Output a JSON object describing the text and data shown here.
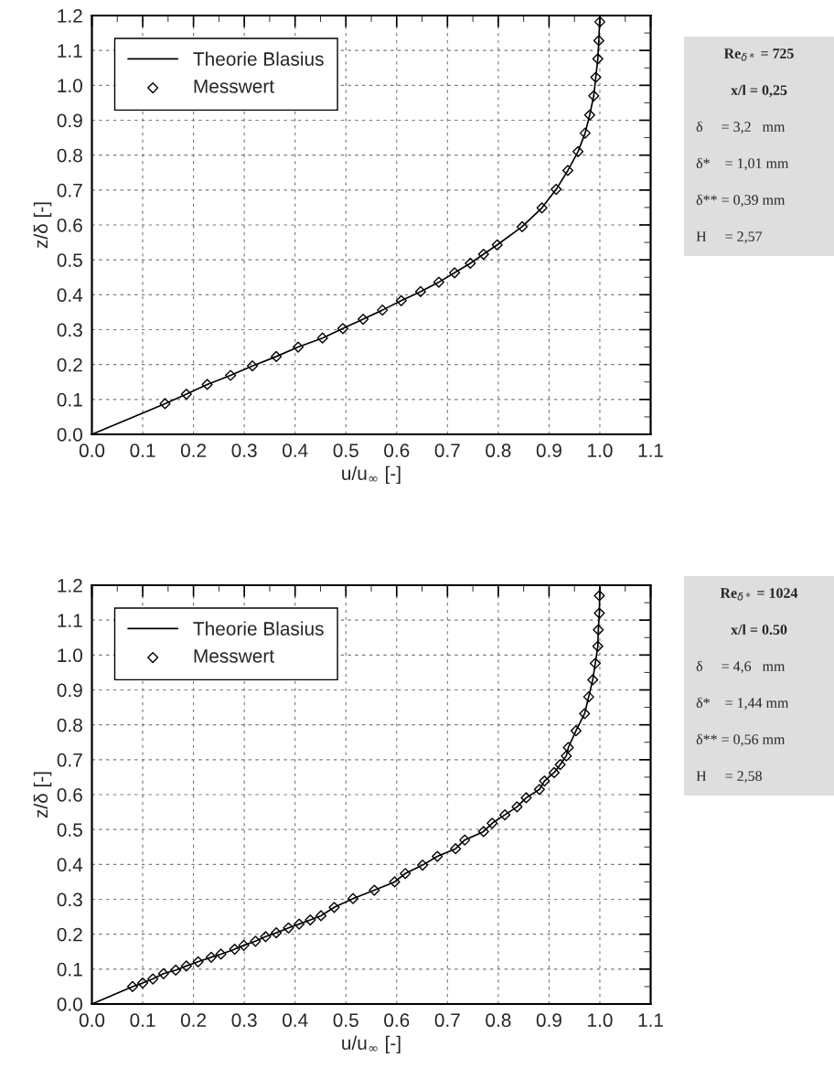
{
  "chart_data": [
    {
      "type": "line",
      "xlabel": "u/u$_{∞}$ [-]",
      "ylabel": "z/δ [-]",
      "xlim": [
        0,
        1.1
      ],
      "ylim": [
        0,
        1.2
      ],
      "xticks": [
        {
          "value": 0,
          "label": "0.0"
        },
        {
          "value": 0.1,
          "label": "0.1"
        },
        {
          "value": 0.2,
          "label": "0.2"
        },
        {
          "value": 0.3,
          "label": "0.3"
        },
        {
          "value": 0.4,
          "label": "0.4"
        },
        {
          "value": 0.5,
          "label": "0.5"
        },
        {
          "value": 0.6,
          "label": "0.6"
        },
        {
          "value": 0.7,
          "label": "0.7"
        },
        {
          "value": 0.8,
          "label": "0.8"
        },
        {
          "value": 0.9,
          "label": "0.9"
        },
        {
          "value": 1.0,
          "label": "1.0"
        },
        {
          "value": 1.1,
          "label": "1.1"
        }
      ],
      "yticks": [
        {
          "value": 0,
          "label": "0.0"
        },
        {
          "value": 0.1,
          "label": "0.1"
        },
        {
          "value": 0.2,
          "label": "0.2"
        },
        {
          "value": 0.3,
          "label": "0.3"
        },
        {
          "value": 0.4,
          "label": "0.4"
        },
        {
          "value": 0.5,
          "label": "0.5"
        },
        {
          "value": 0.6,
          "label": "0.6"
        },
        {
          "value": 0.7,
          "label": "0.7"
        },
        {
          "value": 0.8,
          "label": "0.8"
        },
        {
          "value": 0.9,
          "label": "0.9"
        },
        {
          "value": 1.0,
          "label": "1.0"
        },
        {
          "value": 1.1,
          "label": "1.1"
        },
        {
          "value": 1.2,
          "label": "1.2"
        }
      ],
      "grid": true,
      "legend": "top left",
      "series": [
        {
          "name": "Theorie Blasius",
          "type": "line",
          "color": "#000000",
          "marker": "none",
          "line_style": "solid",
          "x": [
            0,
            0.144,
            0.186,
            0.227,
            0.273,
            0.316,
            0.363,
            0.406,
            0.454,
            0.494,
            0.534,
            0.572,
            0.609,
            0.647,
            0.683,
            0.714,
            0.745,
            0.771,
            0.798,
            0.847,
            0.886,
            0.914,
            0.937,
            0.957,
            0.971,
            0.98,
            0.988,
            0.992,
            0.996,
            0.998,
            1.0
          ],
          "values": [
            0,
            0.088,
            0.115,
            0.143,
            0.169,
            0.196,
            0.223,
            0.25,
            0.276,
            0.303,
            0.33,
            0.356,
            0.383,
            0.409,
            0.436,
            0.463,
            0.49,
            0.516,
            0.543,
            0.595,
            0.649,
            0.702,
            0.756,
            0.81,
            0.863,
            0.915,
            0.97,
            1.023,
            1.076,
            1.128,
            1.2
          ]
        },
        {
          "name": "Messwert",
          "type": "scatter",
          "color": "#000000",
          "marker": "diamond",
          "x": [
            0.144,
            0.186,
            0.227,
            0.273,
            0.316,
            0.363,
            0.406,
            0.454,
            0.494,
            0.534,
            0.572,
            0.609,
            0.647,
            0.683,
            0.714,
            0.745,
            0.771,
            0.798,
            0.847,
            0.886,
            0.914,
            0.937,
            0.957,
            0.971,
            0.98,
            0.988,
            0.992,
            0.996,
            0.998,
            1.0
          ],
          "values": [
            0.088,
            0.115,
            0.143,
            0.169,
            0.196,
            0.223,
            0.25,
            0.276,
            0.303,
            0.33,
            0.356,
            0.383,
            0.409,
            0.436,
            0.463,
            0.49,
            0.516,
            0.543,
            0.595,
            0.649,
            0.702,
            0.756,
            0.81,
            0.863,
            0.915,
            0.97,
            1.023,
            1.076,
            1.128,
            1.182
          ]
        }
      ]
    },
    {
      "type": "other",
      "annotations": [
        "Re$_{δ*}$ = 725",
        "x/l = 0,25",
        "δ     = 3,2   mm",
        "δ*    = 1,01 mm",
        "δ** = 0,39 mm",
        "H     = 2,57"
      ]
    },
    {
      "type": "line",
      "xlabel": "u/u$_{∞}$ [-]",
      "ylabel": "z/δ [-]",
      "xlim": [
        0,
        1.1
      ],
      "ylim": [
        0,
        1.2
      ],
      "xticks": [
        {
          "value": 0,
          "label": "0.0"
        },
        {
          "value": 0.1,
          "label": "0.1"
        },
        {
          "value": 0.2,
          "label": "0.2"
        },
        {
          "value": 0.3,
          "label": "0.3"
        },
        {
          "value": 0.4,
          "label": "0.4"
        },
        {
          "value": 0.5,
          "label": "0.5"
        },
        {
          "value": 0.6,
          "label": "0.6"
        },
        {
          "value": 0.7,
          "label": "0.7"
        },
        {
          "value": 0.8,
          "label": "0.8"
        },
        {
          "value": 0.9,
          "label": "0.9"
        },
        {
          "value": 1.0,
          "label": "1.0"
        },
        {
          "value": 1.1,
          "label": "1.1"
        }
      ],
      "yticks": [
        {
          "value": 0,
          "label": "0.0"
        },
        {
          "value": 0.1,
          "label": "0.1"
        },
        {
          "value": 0.2,
          "label": "0.2"
        },
        {
          "value": 0.3,
          "label": "0.3"
        },
        {
          "value": 0.4,
          "label": "0.4"
        },
        {
          "value": 0.5,
          "label": "0.5"
        },
        {
          "value": 0.6,
          "label": "0.6"
        },
        {
          "value": 0.7,
          "label": "0.7"
        },
        {
          "value": 0.8,
          "label": "0.8"
        },
        {
          "value": 0.9,
          "label": "0.9"
        },
        {
          "value": 1.0,
          "label": "1.0"
        },
        {
          "value": 1.1,
          "label": "1.1"
        },
        {
          "value": 1.2,
          "label": "1.2"
        }
      ],
      "grid": true,
      "legend": "top left",
      "series": [
        {
          "name": "Theorie Blasius",
          "type": "line",
          "color": "#000000",
          "marker": "none",
          "line_style": "solid",
          "x": [
            0,
            0.08,
            0.1,
            0.12,
            0.141,
            0.165,
            0.186,
            0.209,
            0.235,
            0.254,
            0.281,
            0.299,
            0.322,
            0.342,
            0.363,
            0.387,
            0.408,
            0.43,
            0.451,
            0.477,
            0.514,
            0.556,
            0.596,
            0.617,
            0.651,
            0.68,
            0.716,
            0.734,
            0.771,
            0.788,
            0.813,
            0.837,
            0.855,
            0.881,
            0.891,
            0.91,
            0.922,
            0.934,
            0.938,
            0.953,
            0.97,
            0.978,
            0.986,
            0.991,
            0.996,
            0.997,
            0.999,
            1.0
          ],
          "values": [
            0,
            0.05,
            0.06,
            0.072,
            0.087,
            0.097,
            0.109,
            0.121,
            0.134,
            0.143,
            0.157,
            0.168,
            0.18,
            0.193,
            0.204,
            0.218,
            0.229,
            0.241,
            0.253,
            0.277,
            0.302,
            0.326,
            0.35,
            0.374,
            0.398,
            0.423,
            0.445,
            0.47,
            0.494,
            0.518,
            0.542,
            0.565,
            0.591,
            0.615,
            0.639,
            0.663,
            0.686,
            0.711,
            0.735,
            0.783,
            0.832,
            0.88,
            0.929,
            0.976,
            1.025,
            1.072,
            1.12,
            1.2
          ]
        },
        {
          "name": "Messwert",
          "type": "scatter",
          "color": "#000000",
          "marker": "diamond",
          "x": [
            0.08,
            0.1,
            0.12,
            0.141,
            0.165,
            0.186,
            0.209,
            0.235,
            0.254,
            0.281,
            0.299,
            0.322,
            0.342,
            0.363,
            0.387,
            0.408,
            0.43,
            0.451,
            0.477,
            0.514,
            0.556,
            0.596,
            0.617,
            0.651,
            0.68,
            0.716,
            0.734,
            0.771,
            0.788,
            0.813,
            0.837,
            0.855,
            0.881,
            0.891,
            0.91,
            0.922,
            0.934,
            0.938,
            0.953,
            0.97,
            0.978,
            0.986,
            0.991,
            0.996,
            0.997,
            0.999,
            0.999
          ],
          "values": [
            0.05,
            0.06,
            0.072,
            0.087,
            0.097,
            0.109,
            0.121,
            0.134,
            0.143,
            0.157,
            0.168,
            0.18,
            0.193,
            0.204,
            0.218,
            0.229,
            0.241,
            0.253,
            0.277,
            0.302,
            0.326,
            0.35,
            0.374,
            0.398,
            0.423,
            0.445,
            0.47,
            0.494,
            0.518,
            0.542,
            0.565,
            0.591,
            0.615,
            0.639,
            0.663,
            0.686,
            0.711,
            0.735,
            0.783,
            0.832,
            0.88,
            0.929,
            0.976,
            1.025,
            1.072,
            1.12,
            1.17
          ]
        }
      ]
    },
    {
      "type": "other",
      "annotations": [
        "Re$_{δ*}$ = 1024",
        "x/l = 0.50",
        "δ     = 4,6   mm",
        "δ*    = 1,44 mm",
        "δ** = 0,56 mm",
        "H     = 2,58"
      ]
    }
  ]
}
